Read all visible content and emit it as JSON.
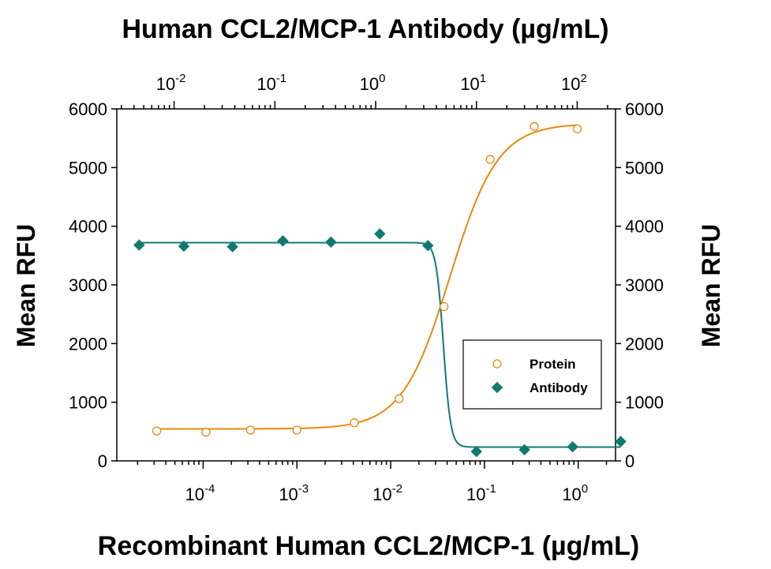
{
  "chart_data": {
    "type": "scatter",
    "title": "Human CCL2/MCP-1 Antibody (µg/mL)",
    "xlabel": "Recombinant Human CCL2/MCP-1 (µg/mL)",
    "ylabel": "Mean RFU",
    "ylabel_right": "Mean RFU",
    "ylim": [
      0,
      6000
    ],
    "yticks": [
      "0",
      "1000",
      "2000",
      "3000",
      "4000",
      "5000",
      "6000"
    ],
    "x_bottom": {
      "scale": "log",
      "range": [
        1.2e-05,
        2.5
      ],
      "tick_exponents": [
        -4,
        -3,
        -2,
        -1,
        0
      ]
    },
    "x_top": {
      "scale": "log",
      "range": [
        0.0027,
        240
      ],
      "tick_exponents": [
        -2,
        -1,
        0,
        1,
        2
      ]
    },
    "legend": {
      "position": "bottom-right"
    },
    "series": [
      {
        "name": "Protein",
        "axis": "bottom",
        "marker": "open-circle",
        "color": "#e8890c",
        "points": [
          [
            3.2e-05,
            510
          ],
          [
            0.000107,
            490
          ],
          [
            0.00032,
            525
          ],
          [
            0.001,
            525
          ],
          [
            0.0041,
            650
          ],
          [
            0.0123,
            1060
          ],
          [
            0.037,
            2630
          ],
          [
            0.115,
            5140
          ],
          [
            0.34,
            5700
          ],
          [
            0.98,
            5660
          ]
        ],
        "fit": {
          "type": "4PL",
          "bottom": 545,
          "top": 5750,
          "ec50": 0.043,
          "hill": 1.7
        }
      },
      {
        "name": "Antibody",
        "axis": "top",
        "marker": "filled-diamond",
        "color": "#117a70",
        "points": [
          [
            0.0045,
            3680
          ],
          [
            0.0125,
            3660
          ],
          [
            0.038,
            3650
          ],
          [
            0.12,
            3750
          ],
          [
            0.36,
            3730
          ],
          [
            1.1,
            3870
          ],
          [
            3.3,
            3670
          ],
          [
            10,
            160
          ],
          [
            30,
            190
          ],
          [
            90,
            240
          ],
          [
            270,
            330
          ]
        ],
        "fit": {
          "type": "4PL",
          "bottom": 235,
          "top": 3720,
          "ec50": 4.7,
          "hill": -12
        }
      }
    ]
  }
}
